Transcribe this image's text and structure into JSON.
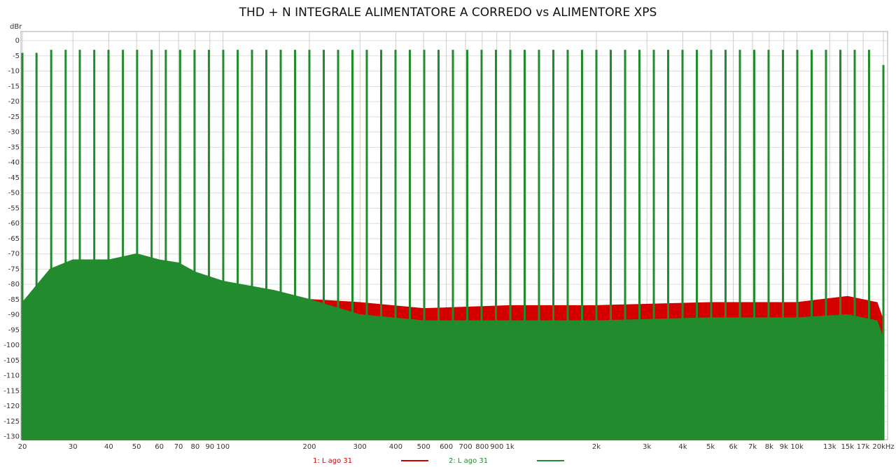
{
  "chart_data": {
    "type": "area",
    "title": "THD + N INTEGRALE ALIMENTATORE A CORREDO vs ALIMENTORE XPS",
    "y_label": "dBr",
    "log_x": true,
    "grid": true,
    "xlim": [
      20,
      20000
    ],
    "ylim": [
      -131,
      3
    ],
    "xticks": [
      20,
      30,
      40,
      50,
      60,
      70,
      80,
      90,
      100,
      200,
      300,
      400,
      500,
      600,
      700,
      800,
      900,
      {
        "value": 1000,
        "label": "1k"
      },
      {
        "value": 2000,
        "label": "2k"
      },
      {
        "value": 3000,
        "label": "3k"
      },
      {
        "value": 4000,
        "label": "4k"
      },
      {
        "value": 5000,
        "label": "5k"
      },
      {
        "value": 6000,
        "label": "6k"
      },
      {
        "value": 7000,
        "label": "7k"
      },
      {
        "value": 8000,
        "label": "8k"
      },
      {
        "value": 9000,
        "label": "9k"
      },
      {
        "value": 10000,
        "label": "10k"
      },
      {
        "value": 13000,
        "label": "13k"
      },
      {
        "value": 15000,
        "label": "15k"
      },
      {
        "value": 17000,
        "label": "17k"
      },
      {
        "value": 20000,
        "label": "20kHz"
      }
    ],
    "yticks": [
      0,
      -5,
      -10,
      -15,
      -20,
      -25,
      -30,
      -35,
      -40,
      -45,
      -50,
      -55,
      -60,
      -65,
      -70,
      -75,
      -80,
      -85,
      -90,
      -95,
      -100,
      -105,
      -110,
      -115,
      -120,
      -125,
      -130
    ],
    "series": [
      {
        "name": "1: L ago 31",
        "color": "#d40000",
        "x": [
          20,
          25,
          30,
          40,
          50,
          60,
          70,
          80,
          100,
          150,
          200,
          300,
          500,
          1000,
          2000,
          5000,
          10000,
          15000,
          19000,
          20000
        ],
        "values": [
          -86,
          -76,
          -74,
          -73,
          -72,
          -73,
          -74,
          -77,
          -80,
          -82,
          -85,
          -86,
          -88,
          -87,
          -87,
          -86,
          -86,
          -84,
          -86,
          -92
        ]
      },
      {
        "name": "2: L ago 31",
        "color": "#228b2e",
        "x": [
          20,
          25,
          30,
          40,
          50,
          60,
          70,
          80,
          100,
          150,
          200,
          300,
          500,
          1000,
          2000,
          5000,
          10000,
          15000,
          19000,
          20000
        ],
        "values": [
          -86,
          -75,
          -72,
          -72,
          -70,
          -72,
          -73,
          -76,
          -79,
          -82,
          -85,
          -90,
          -92,
          -92,
          -92,
          -91,
          -91,
          -90,
          -92,
          -98
        ],
        "tone_x": [
          20,
          22.4,
          25.2,
          28.3,
          31.7,
          35.6,
          39.9,
          44.8,
          50.2,
          56.4,
          63.2,
          70.9,
          79.6,
          89.3,
          100.2,
          112.5,
          126.2,
          141.6,
          158.9,
          178.3,
          200,
          224.4,
          251.8,
          282.5,
          317,
          355.7,
          399.1,
          447.7,
          502.4,
          563.7,
          632.5,
          709.6,
          796.2,
          893.4,
          1002.4,
          1124.7,
          1261.9,
          1415.9,
          1588.7,
          1782.5,
          2000,
          2244,
          2518,
          2825,
          3170,
          3557,
          3991,
          4477,
          5024,
          5637,
          6325,
          7096,
          7962,
          8934,
          10024,
          11247,
          12619,
          14159,
          15887,
          17825,
          20000
        ],
        "tone_values": [
          -4,
          -4,
          -3,
          -3,
          -3,
          -3,
          -3,
          -3,
          -3,
          -3,
          -3,
          -3,
          -3,
          -3,
          -3,
          -3,
          -3,
          -3,
          -3,
          -3,
          -3,
          -3,
          -3,
          -3,
          -3,
          -3,
          -3,
          -3,
          -3,
          -3,
          -3,
          -3,
          -3,
          -3,
          -3,
          -3,
          -3,
          -3,
          -3,
          -3,
          -3,
          -3,
          -3,
          -3,
          -3,
          -3,
          -3,
          -3,
          -3,
          -3,
          -3,
          -3,
          -3,
          -3,
          -3,
          -3,
          -3,
          -3,
          -3,
          -3,
          -8
        ]
      }
    ]
  }
}
